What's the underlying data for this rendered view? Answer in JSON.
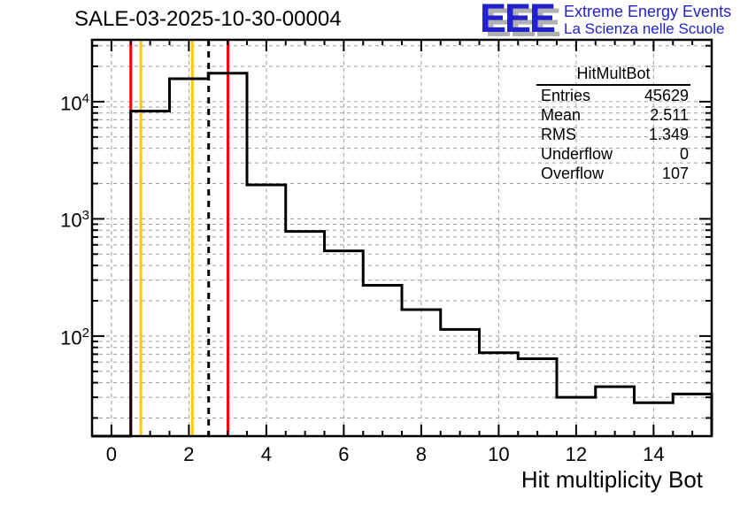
{
  "title": "SALE-03-2025-10-30-00004",
  "logo": {
    "letters": "EEE",
    "line1": "Extreme Energy Events",
    "line2": "La Scienza nelle Scuole",
    "blue": "#2222cc",
    "shadow_gray": "#b0b0b0"
  },
  "stats": {
    "title": "HitMultBot",
    "rows": [
      {
        "label": "Entries",
        "value": "45629"
      },
      {
        "label": "Mean",
        "value": "2.511"
      },
      {
        "label": "RMS",
        "value": "1.349"
      },
      {
        "label": "Underflow",
        "value": "0"
      },
      {
        "label": "Overflow",
        "value": "107"
      }
    ]
  },
  "colors": {
    "histogram_line": "#000000",
    "grid": "#9c9c9c",
    "frame": "#000000",
    "marker_red": "#ff0000",
    "marker_yellow": "#ffc800",
    "marker_mean": "#000000"
  },
  "chart_data": {
    "type": "bar",
    "histogram_name": "HitMultBot",
    "title": "SALE-03-2025-10-30-00004",
    "xlabel": "Hit multiplicity Bot",
    "ylabel": "",
    "yscale": "log",
    "grid": true,
    "xlim": [
      -0.5,
      15.5
    ],
    "ylim": [
      14,
      33700
    ],
    "bin_centers": [
      0,
      1,
      2,
      3,
      4,
      5,
      6,
      7,
      8,
      9,
      10,
      11,
      12,
      13,
      14,
      15
    ],
    "values": [
      0,
      8300,
      15700,
      17500,
      1950,
      780,
      533,
      271,
      168,
      114,
      72,
      64,
      30,
      37,
      27,
      32
    ],
    "x_major_ticks": [
      0,
      2,
      4,
      6,
      8,
      10,
      12,
      14
    ],
    "x_tick_labels": [
      "0",
      "2",
      "4",
      "6",
      "8",
      "10",
      "12",
      "14"
    ],
    "x_minor_tick_step": 0.5,
    "y_tick_labels": [
      {
        "value": 100,
        "base": "10",
        "exp": "2"
      },
      {
        "value": 1000,
        "base": "10",
        "exp": "3"
      },
      {
        "value": 10000,
        "base": "10",
        "exp": "4"
      }
    ],
    "marker_lines": [
      {
        "x": 0.5,
        "color": "#ff0000",
        "style": "solid",
        "name": "marker-line-red-low"
      },
      {
        "x": 0.76,
        "color": "#ffc800",
        "style": "solid",
        "name": "marker-line-yellow-low"
      },
      {
        "x": 2.09,
        "color": "#ffc800",
        "style": "solid",
        "name": "marker-line-yellow-high"
      },
      {
        "x": 2.511,
        "color": "#000000",
        "style": "dashed",
        "name": "marker-line-mean"
      },
      {
        "x": 3.01,
        "color": "#ff0000",
        "style": "solid",
        "name": "marker-line-red-high"
      }
    ]
  }
}
